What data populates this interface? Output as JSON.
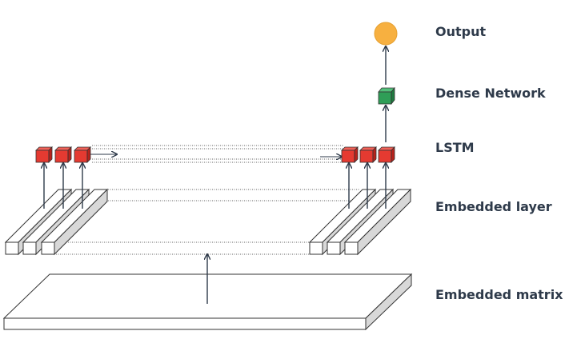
{
  "labels": {
    "output": "Output",
    "dense": "Dense Network",
    "lstm": "LSTM",
    "embedded_layer": "Embedded layer",
    "embedded_matrix": "Embedded matrix"
  },
  "colors": {
    "output_node": "#f7b040",
    "dense_cube": "#2f9e57",
    "lstm_cube": "#e53a31",
    "stroke": "#333333",
    "arrow": "#2e3a4a",
    "label_text": "#2e3a4a",
    "slab_side": "#d8d8d8"
  }
}
